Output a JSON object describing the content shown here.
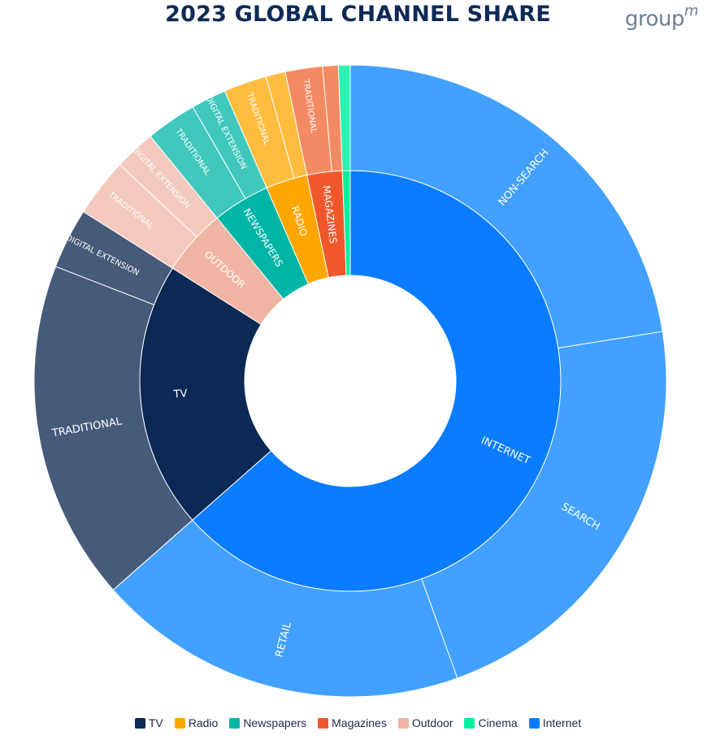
{
  "title": "2023 GLOBAL CHANNEL SHARE",
  "logo": {
    "text": "group",
    "superscript": "m"
  },
  "chart_data": {
    "type": "sunburst",
    "title": "2023 GLOBAL CHANNEL SHARE",
    "unit": "percent share (estimated)",
    "legend_position": "bottom",
    "channels": [
      {
        "name": "Internet",
        "color": "#0a7cff",
        "share": 63.5,
        "label": "INTERNET",
        "children": [
          {
            "label": "NON-SEARCH",
            "share": 22.5,
            "color": "#42a0ff"
          },
          {
            "label": "SEARCH",
            "share": 22.0,
            "color": "#42a0ff"
          },
          {
            "label": "RETAIL",
            "share": 19.0,
            "color": "#42a0ff"
          }
        ]
      },
      {
        "name": "TV",
        "color": "#0c2955",
        "share": 20.5,
        "label": "TV",
        "children": [
          {
            "label": "TRADITIONAL",
            "share": 17.4,
            "color": "#465a7a"
          },
          {
            "label": "DIGITAL EXTENSION",
            "share": 3.1,
            "color": "#465a7a"
          }
        ]
      },
      {
        "name": "Outdoor",
        "color": "#efb4a3",
        "share": 5.1,
        "label": "OUTDOOR",
        "children": [
          {
            "label": "TRADITIONAL",
            "share": 3.0,
            "color": "#f3c9bd"
          },
          {
            "label": "DIGITAL EXTENSION",
            "share": 2.1,
            "color": "#f3c9bd"
          }
        ]
      },
      {
        "name": "Newspapers",
        "color": "#00b5a6",
        "share": 4.4,
        "label": "NEWSPAPERS",
        "children": [
          {
            "label": "TRADITIONAL",
            "share": 2.6,
            "color": "#40c8bd"
          },
          {
            "label": "DIGITAL EXTENSION",
            "share": 1.8,
            "color": "#40c8bd"
          }
        ]
      },
      {
        "name": "Radio",
        "color": "#ffa700",
        "share": 3.2,
        "label": "RADIO",
        "children": [
          {
            "label": "TRADITIONAL",
            "share": 2.2,
            "color": "#ffbd40"
          },
          {
            "label": "",
            "share": 1.0,
            "color": "#ffbd40"
          }
        ]
      },
      {
        "name": "Magazines",
        "color": "#f0582c",
        "share": 2.7,
        "label": "MAGAZINES",
        "children": [
          {
            "label": "TRADITIONAL",
            "share": 1.9,
            "color": "#f48a64"
          },
          {
            "label": "",
            "share": 0.8,
            "color": "#f48a64"
          }
        ]
      },
      {
        "name": "Cinema",
        "color": "#00f0a0",
        "share": 0.6,
        "label": "",
        "children": [
          {
            "label": "",
            "share": 0.6,
            "color": "#2bf3b4"
          }
        ]
      }
    ],
    "legend_order": [
      "TV",
      "Radio",
      "Newspapers",
      "Magazines",
      "Outdoor",
      "Cinema",
      "Internet"
    ]
  }
}
